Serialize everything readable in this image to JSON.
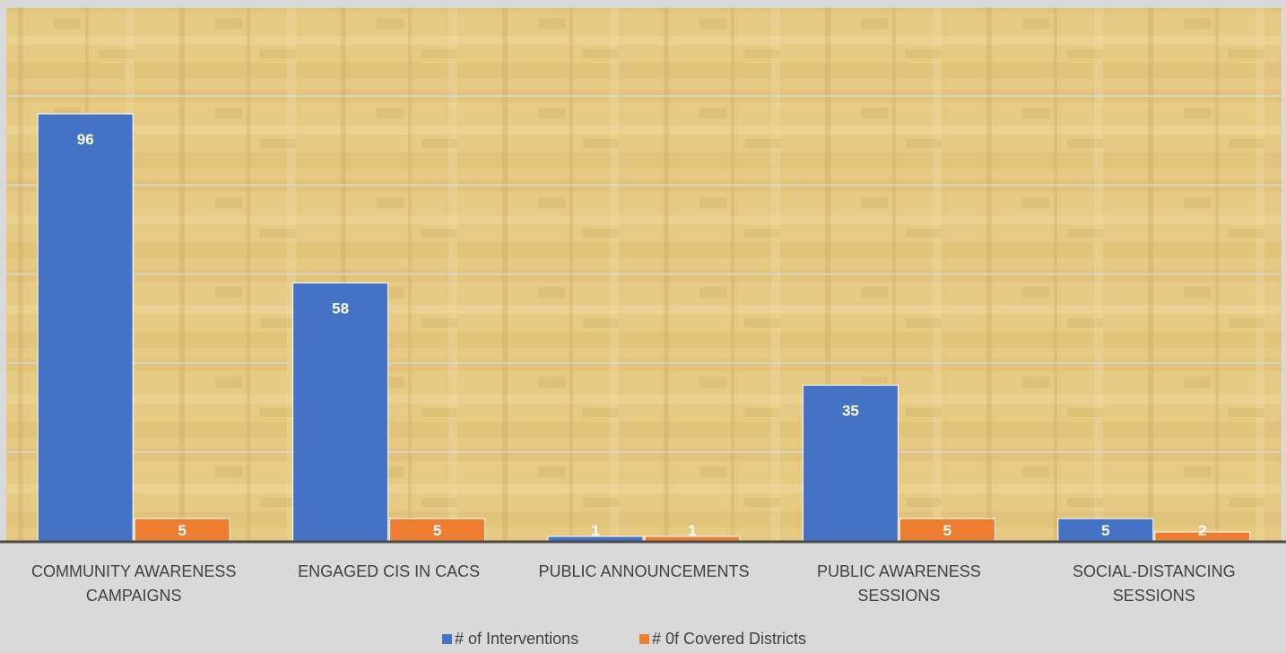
{
  "chart_data": {
    "type": "bar",
    "categories": [
      [
        "COMMUNITY AWARENESS",
        "CAMPAIGNS"
      ],
      [
        "ENGAGED CIS IN CACS"
      ],
      [
        "PUBLIC ANNOUNCEMENTS"
      ],
      [
        "PUBLIC AWARENESS",
        "SESSIONS"
      ],
      [
        "SOCIAL-DISTANCING",
        "SESSIONS"
      ]
    ],
    "series": [
      {
        "name": "# of Interventions",
        "values": [
          96,
          58,
          1,
          35,
          5
        ],
        "color": "#4472c4"
      },
      {
        "name": "# 0f Covered Districts",
        "values": [
          5,
          5,
          1,
          5,
          2
        ],
        "color": "#ed7d31"
      }
    ],
    "ylim": [
      0,
      120
    ],
    "grid": true,
    "legend_position": "bottom-center",
    "plot_background": "#e3c77f",
    "page_background": "#d9d9d9"
  }
}
